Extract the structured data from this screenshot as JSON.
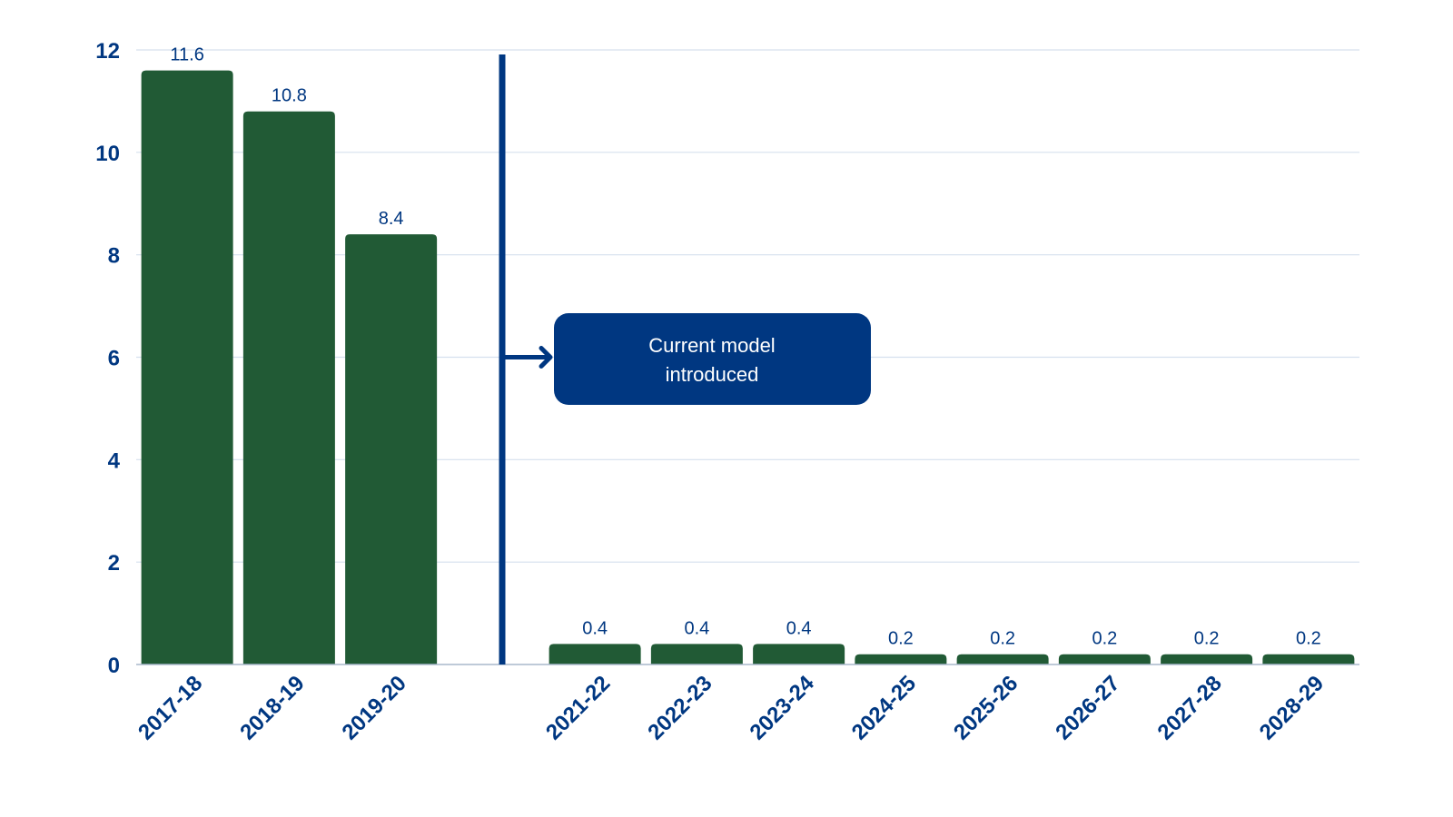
{
  "chart_data": {
    "type": "bar",
    "title": "",
    "xlabel": "",
    "ylabel": "",
    "ylim": [
      0,
      12
    ],
    "yticks": [
      "0",
      "2",
      "4",
      "6",
      "8",
      "10",
      "12"
    ],
    "grid": true,
    "categories": [
      "2017-18",
      "2018-19",
      "2019-20",
      "2021-22",
      "2022-23",
      "2023-24",
      "2024-25",
      "2025-26",
      "2026-27",
      "2027-28",
      "2028-29"
    ],
    "values": [
      11.6,
      10.8,
      8.4,
      0.4,
      0.4,
      0.4,
      0.2,
      0.2,
      0.2,
      0.2,
      0.2
    ],
    "data_labels": [
      "11.6",
      "10.8",
      "8.4",
      "0.4",
      "0.4",
      "0.4",
      "0.2",
      "0.2",
      "0.2",
      "0.2",
      "0.2"
    ],
    "gap_after_category": "2019-20",
    "annotation": {
      "line1": "Current model",
      "line2": "introduced",
      "arrow_y_value": 6
    },
    "colors": {
      "bar": "#215a35",
      "text": "#003781",
      "annotation_box": "#003781",
      "grid": "#d6e0ee"
    }
  }
}
